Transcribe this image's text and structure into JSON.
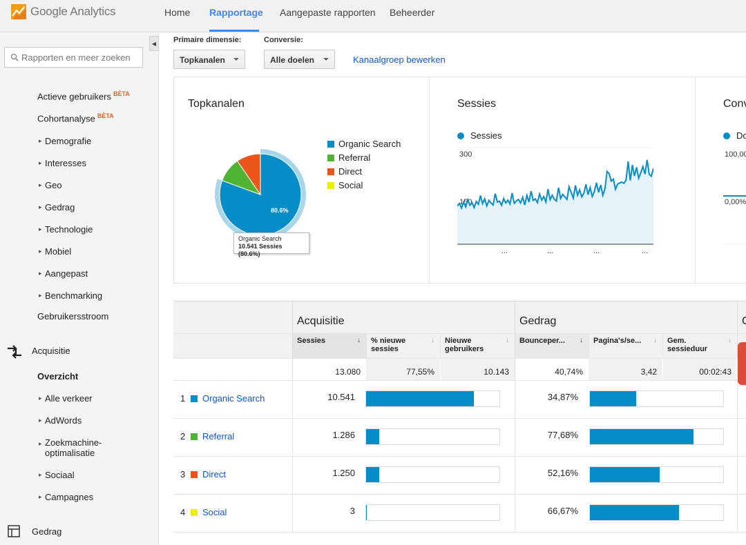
{
  "app": {
    "logo_text": "Google Analytics",
    "nav": [
      "Home",
      "Rapportage",
      "Aangepaste rapporten",
      "Beheerder"
    ],
    "active_nav": "Rapportage"
  },
  "sidebar": {
    "search_placeholder": "Rapporten en meer zoeken",
    "items": [
      {
        "label": "Actieve gebruikers",
        "badge": "BÈTA"
      },
      {
        "label": "Cohortanalyse",
        "badge": "BÈTA"
      },
      {
        "label": "Demografie"
      },
      {
        "label": "Interesses"
      },
      {
        "label": "Geo"
      },
      {
        "label": "Gedrag"
      },
      {
        "label": "Technologie"
      },
      {
        "label": "Mobiel"
      },
      {
        "label": "Aangepast"
      },
      {
        "label": "Benchmarking"
      },
      {
        "label": "Gebruikersstroom"
      }
    ],
    "acquisitie": {
      "label": "Acquisitie",
      "items": [
        "Overzicht",
        "Alle verkeer",
        "AdWords",
        "Zoekmachine-\noptimalisatie",
        "Sociaal",
        "Campagnes"
      ]
    },
    "gedrag_section": "Gedrag"
  },
  "controls": {
    "primary_dimension_label": "Primaire dimensie:",
    "primary_dimension_value": "Topkanalen",
    "conversion_label": "Conversie:",
    "conversion_value": "Alle doelen",
    "edit_link": "Kanaalgroep bewerken"
  },
  "panels": {
    "topkanalen": {
      "title": "Topkanalen",
      "legend": [
        {
          "name": "Organic Search",
          "color": "#058dc7"
        },
        {
          "name": "Referral",
          "color": "#50b432"
        },
        {
          "name": "Direct",
          "color": "#ed561b"
        },
        {
          "name": "Social",
          "color": "#edef00"
        }
      ],
      "slice_label": "80.6%",
      "tooltip_title": "Organic Search",
      "tooltip_value": "10.541 Sessies (80.6%)"
    },
    "sessies": {
      "title": "Sessies",
      "legend": "Sessies",
      "y_top": "300",
      "y_mid": "150",
      "x_ticks": [
        "...",
        "...",
        "...",
        "..."
      ]
    },
    "conversies": {
      "title": "Conv",
      "legend": "Do",
      "y_top": "100,00",
      "y_mid": "0,00%"
    }
  },
  "chart_data": [
    {
      "type": "pie",
      "title": "Topkanalen",
      "categories": [
        "Organic Search",
        "Referral",
        "Direct",
        "Social"
      ],
      "values": [
        10541,
        1286,
        1250,
        3
      ]
    },
    {
      "type": "area",
      "title": "Sessies",
      "series": [
        {
          "name": "Sessies",
          "values": [
            118,
            127,
            112,
            131,
            116,
            138,
            121,
            129,
            114,
            133,
            124,
            151,
            126,
            141,
            119,
            136,
            128,
            122,
            157,
            131,
            134,
            121,
            142,
            128,
            137,
            125,
            159,
            127,
            134,
            139,
            128,
            146,
            122,
            152,
            131,
            165,
            136,
            141,
            129,
            156,
            137,
            148,
            131,
            171,
            138,
            152,
            140,
            134,
            176,
            142,
            155,
            147,
            139,
            179,
            161,
            143,
            183,
            152,
            169,
            147,
            158,
            186,
            154,
            176,
            148,
            164,
            191,
            161,
            184,
            152,
            172,
            226,
            219,
            196,
            202,
            171,
            187,
            190,
            193,
            189,
            199,
            257,
            198,
            246,
            212,
            239,
            205,
            222,
            241,
            218,
            262,
            217,
            211,
            236
          ]
        }
      ],
      "ylim": [
        0,
        300
      ]
    }
  ],
  "table": {
    "groups": [
      "Acquisitie",
      "Gedrag",
      "C"
    ],
    "columns": [
      "Sessies",
      "% nieuwe sessies",
      "Nieuwe gebruikers",
      "Bounceper...",
      "Pagina's/se...",
      "Gem. sessieduur"
    ],
    "totals": [
      "13.080",
      "77,55%",
      "10.143",
      "40,74%",
      "3,42",
      "00:02:43"
    ],
    "rows": [
      {
        "rank": "1",
        "channel": "Organic Search",
        "color": "#058dc7",
        "sessies": "10.541",
        "sessies_pct": 80.6,
        "bounce": "34,87%",
        "bounce_pct": 34.87
      },
      {
        "rank": "2",
        "channel": "Referral",
        "color": "#50b432",
        "sessies": "1.286",
        "sessies_pct": 9.8,
        "bounce": "77,68%",
        "bounce_pct": 77.68
      },
      {
        "rank": "3",
        "channel": "Direct",
        "color": "#ed561b",
        "sessies": "1.250",
        "sessies_pct": 9.6,
        "bounce": "52,16%",
        "bounce_pct": 52.16
      },
      {
        "rank": "4",
        "channel": "Social",
        "color": "#edef00",
        "sessies": "3",
        "sessies_pct": 0.02,
        "bounce": "66,67%",
        "bounce_pct": 66.67
      }
    ]
  }
}
